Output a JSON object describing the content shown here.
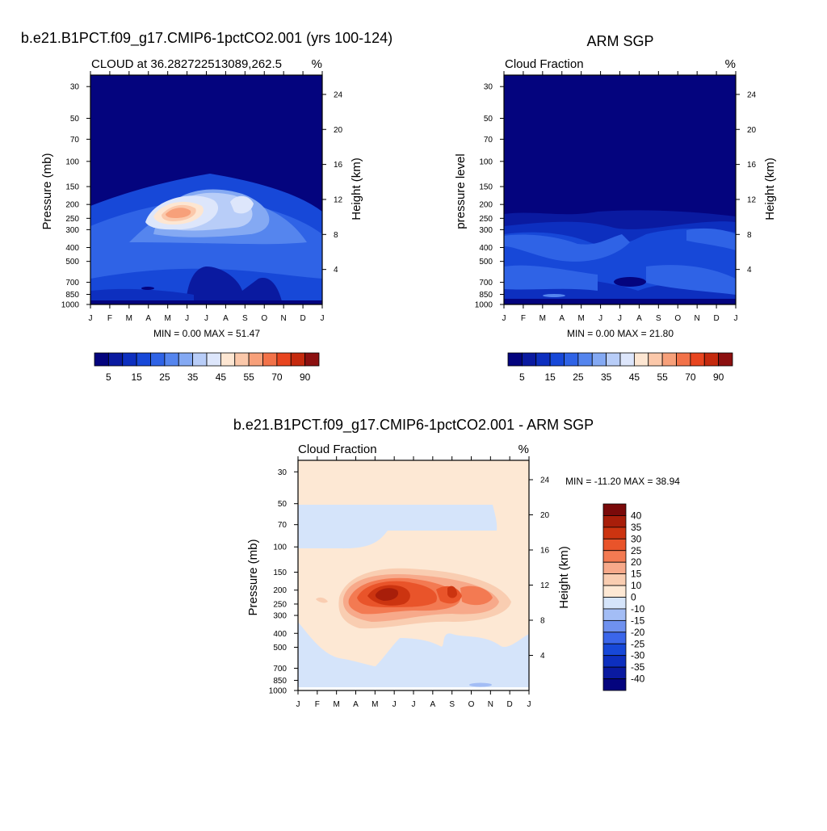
{
  "colors": {
    "seq": [
      "#04047e",
      "#0a1aa0",
      "#0d2fbf",
      "#1748d8",
      "#2f63e6",
      "#5585ee",
      "#84a9f3",
      "#b8cdf8",
      "#dde6fb",
      "#fde6d2",
      "#fbc8aa",
      "#f7a07a",
      "#f27249",
      "#e8451f",
      "#c52a0e",
      "#8c1010"
    ],
    "diff": [
      "#04047e",
      "#0a1aa0",
      "#0d2fbf",
      "#1748d8",
      "#3b66ea",
      "#6f91ef",
      "#a3bdf5",
      "#d5e4fa",
      "#fde8d4",
      "#f9cdb1",
      "#f7a98a",
      "#f37a52",
      "#e9542a",
      "#cc3410",
      "#a81e0a",
      "#7a0a0a"
    ]
  },
  "chart_data": [
    {
      "type": "heatmap",
      "title": "b.e21.B1PCT.f09_g17.CMIP6-1pctCO2.001 (yrs 100-124)",
      "subtitle": "CLOUD at 36.282722513089,262.5",
      "units": "%",
      "xlabel": "",
      "ylabel": "Pressure (mb)",
      "ylabel_right": "Height (km)",
      "x_ticks": [
        "J",
        "F",
        "M",
        "A",
        "M",
        "J",
        "J",
        "A",
        "S",
        "O",
        "N",
        "D",
        "J"
      ],
      "y_ticks": [
        "30",
        "50",
        "70",
        "100",
        "150",
        "200",
        "250",
        "300",
        "400",
        "500",
        "700",
        "850",
        "1000"
      ],
      "y_scale": "log",
      "y_right_ticks": [
        "24",
        "20",
        "16",
        "12",
        "8",
        "4"
      ],
      "min_max_text": "MIN =   0.00 MAX =  51.47",
      "min": 0.0,
      "max": 51.47,
      "colorbar_labels": [
        "5",
        "15",
        "25",
        "35",
        "45",
        "55",
        "70",
        "90"
      ],
      "features": [
        {
          "month": 5.0,
          "pressure": 210,
          "value": 51
        },
        {
          "month": 7.5,
          "pressure": 210,
          "value": 40
        }
      ]
    },
    {
      "type": "heatmap",
      "title": "ARM SGP",
      "subtitle": "Cloud Fraction",
      "units": "%",
      "xlabel": "",
      "ylabel": "pressure level",
      "ylabel_right": "Height (km)",
      "x_ticks": [
        "J",
        "F",
        "M",
        "A",
        "M",
        "J",
        "J",
        "A",
        "S",
        "O",
        "N",
        "D",
        "J"
      ],
      "y_ticks": [
        "30",
        "50",
        "70",
        "100",
        "150",
        "200",
        "250",
        "300",
        "400",
        "500",
        "700",
        "850",
        "1000"
      ],
      "y_scale": "log",
      "y_right_ticks": [
        "24",
        "20",
        "16",
        "12",
        "8",
        "4"
      ],
      "min_max_text": "MIN =   0.00 MAX =  21.80",
      "min": 0.0,
      "max": 21.8,
      "colorbar_labels": [
        "5",
        "15",
        "25",
        "35",
        "45",
        "55",
        "70",
        "90"
      ]
    },
    {
      "type": "heatmap",
      "title": "b.e21.B1PCT.f09_g17.CMIP6-1pctCO2.001 - ARM SGP",
      "subtitle": "Cloud Fraction",
      "units": "%",
      "xlabel": "",
      "ylabel": "Pressure (mb)",
      "ylabel_right": "Height (km)",
      "x_ticks": [
        "J",
        "F",
        "M",
        "A",
        "M",
        "J",
        "J",
        "A",
        "S",
        "O",
        "N",
        "D",
        "J"
      ],
      "y_ticks": [
        "30",
        "50",
        "70",
        "100",
        "150",
        "200",
        "250",
        "300",
        "400",
        "500",
        "700",
        "850",
        "1000"
      ],
      "y_scale": "log",
      "y_right_ticks": [
        "24",
        "20",
        "16",
        "12",
        "8",
        "4"
      ],
      "min_max_text": "MIN = -11.20 MAX =  38.94",
      "min": -11.2,
      "max": 38.94,
      "colorbar_labels": [
        "40",
        "35",
        "30",
        "25",
        "20",
        "15",
        "10",
        "0",
        "-10",
        "-15",
        "-20",
        "-25",
        "-30",
        "-35",
        "-40"
      ]
    }
  ]
}
